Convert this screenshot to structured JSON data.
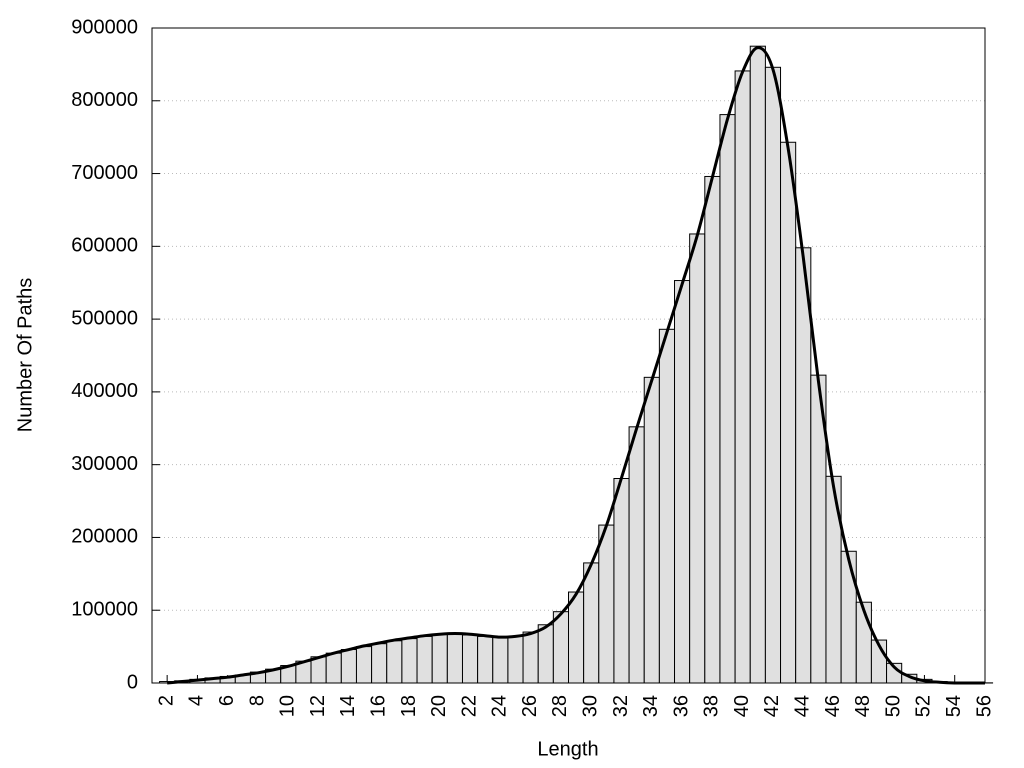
{
  "chart_data": {
    "type": "bar",
    "x_label": "Length",
    "y_label": "Number Of Paths",
    "x": [
      2,
      3,
      4,
      5,
      6,
      7,
      8,
      9,
      10,
      11,
      12,
      13,
      14,
      15,
      16,
      17,
      18,
      19,
      20,
      21,
      22,
      23,
      24,
      25,
      26,
      27,
      28,
      29,
      30,
      31,
      32,
      33,
      34,
      35,
      36,
      37,
      38,
      39,
      40,
      41,
      42,
      43,
      44,
      45,
      46,
      47,
      48,
      49,
      50,
      51,
      52,
      53,
      54,
      55,
      56
    ],
    "series": [
      {
        "type": "bar",
        "color": "#e0e0e0",
        "values": [
          2000,
          3000,
          5000,
          7000,
          9000,
          11000,
          15000,
          19000,
          24000,
          30000,
          36000,
          41000,
          46000,
          50000,
          54000,
          58000,
          61000,
          64000,
          67000,
          67000,
          66000,
          64000,
          63000,
          64000,
          70000,
          80000,
          98000,
          125000,
          165000,
          217000,
          281000,
          352000,
          420000,
          486000,
          553000,
          617000,
          696000,
          781000,
          841000,
          875000,
          846000,
          743000,
          598000,
          423000,
          284000,
          181000,
          111000,
          59000,
          27000,
          12000,
          5000,
          2000,
          1000,
          500,
          200
        ]
      },
      {
        "type": "line",
        "color": "#000000",
        "values": [
          0,
          2000,
          4000,
          6000,
          8000,
          11000,
          14000,
          18000,
          23000,
          29000,
          35000,
          41000,
          46000,
          51000,
          55000,
          59000,
          62000,
          65000,
          67000,
          68000,
          67000,
          65000,
          63000,
          64000,
          68000,
          77000,
          95000,
          122000,
          163000,
          216000,
          282000,
          350000,
          416000,
          482000,
          548000,
          615000,
          695000,
          775000,
          840000,
          873000,
          843000,
          735000,
          585000,
          415000,
          270000,
          170000,
          100000,
          52000,
          22000,
          9000,
          3000,
          1000,
          0,
          0,
          0
        ]
      }
    ],
    "xlim": [
      1,
      56
    ],
    "xticks": [
      2,
      4,
      6,
      8,
      10,
      12,
      14,
      16,
      18,
      20,
      22,
      24,
      26,
      28,
      30,
      32,
      34,
      36,
      38,
      40,
      42,
      44,
      46,
      48,
      50,
      52,
      54,
      56
    ],
    "ylim": [
      0,
      900000
    ],
    "yticks": [
      0,
      100000,
      200000,
      300000,
      400000,
      500000,
      600000,
      700000,
      800000,
      900000
    ],
    "grid": true
  }
}
